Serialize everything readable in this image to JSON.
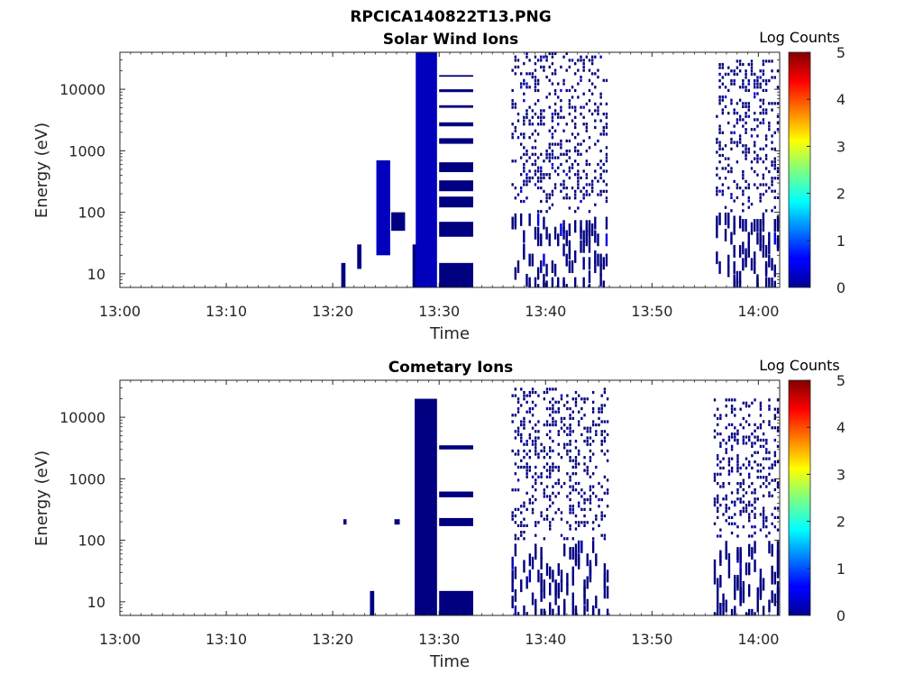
{
  "figure_title": "RPCICA140822T13.PNG",
  "colorbar_cmap": "jet",
  "colorbar_max_color": "#800000",
  "colorbar_min_color": "#00008f",
  "chart_data": [
    {
      "type": "heatmap",
      "title": "Solar Wind Ions",
      "xlabel": "Time",
      "ylabel": "Energy (eV)",
      "yscale": "log",
      "ylim": [
        6,
        40000
      ],
      "xlim": [
        "13:00",
        "14:02"
      ],
      "x_ticks": [
        "13:00",
        "13:10",
        "13:20",
        "13:30",
        "13:40",
        "13:50",
        "14:00"
      ],
      "y_ticks": [
        "10",
        "100",
        "1000",
        "10000"
      ],
      "colorbar": {
        "label": "Log Counts",
        "range": [
          0,
          5
        ],
        "ticks": [
          "0",
          "1",
          "2",
          "3",
          "4",
          "5"
        ]
      },
      "time_bins_minutes": [
        {
          "start": 20.8,
          "end": 21.2,
          "emin": 6,
          "emax": 15,
          "logc": 0
        },
        {
          "start": 22.3,
          "end": 22.7,
          "emin": 12,
          "emax": 30,
          "logc": 0
        },
        {
          "start": 24.1,
          "end": 25.4,
          "emin": 20,
          "emax": 700,
          "logc": 0.3
        },
        {
          "start": 25.5,
          "end": 26.8,
          "emin": 50,
          "emax": 100,
          "logc": 0
        },
        {
          "start": 27.5,
          "end": 28.0,
          "emin": 6,
          "emax": 30,
          "logc": 0
        },
        {
          "start": 27.8,
          "end": 29.8,
          "emin": 6,
          "emax": 40000,
          "logc": 0.3
        },
        {
          "start": 30.0,
          "end": 33.2,
          "emin": 6,
          "emax": 15,
          "logc": 0
        },
        {
          "start": 30.0,
          "end": 33.2,
          "emin": 40,
          "emax": 70,
          "logc": 0
        },
        {
          "start": 30.0,
          "end": 33.2,
          "emin": 120,
          "emax": 180,
          "logc": 0
        },
        {
          "start": 30.0,
          "end": 33.2,
          "emin": 220,
          "emax": 330,
          "logc": 0
        },
        {
          "start": 30.0,
          "end": 33.2,
          "emin": 450,
          "emax": 650,
          "logc": 0
        },
        {
          "start": 30.0,
          "end": 33.2,
          "emin": 1300,
          "emax": 1600,
          "logc": 0
        },
        {
          "start": 30.0,
          "end": 33.2,
          "emin": 2500,
          "emax": 2900,
          "logc": 0
        },
        {
          "start": 30.0,
          "end": 33.2,
          "emin": 5000,
          "emax": 5500,
          "logc": 0
        },
        {
          "start": 30.0,
          "end": 33.2,
          "emin": 9000,
          "emax": 10000,
          "logc": 0
        },
        {
          "start": 30.0,
          "end": 33.2,
          "emin": 16000,
          "emax": 17000,
          "logc": 0
        },
        {
          "start": 36.8,
          "end": 45.9,
          "emin": 6,
          "emax": 40000,
          "logc": 0.2
        },
        {
          "start": 56.0,
          "end": 62.0,
          "emin": 6,
          "emax": 30000,
          "logc": 0.15
        }
      ]
    },
    {
      "type": "heatmap",
      "title": "Cometary Ions",
      "xlabel": "Time",
      "ylabel": "Energy (eV)",
      "yscale": "log",
      "ylim": [
        6,
        40000
      ],
      "xlim": [
        "13:00",
        "14:02"
      ],
      "x_ticks": [
        "13:00",
        "13:10",
        "13:20",
        "13:30",
        "13:40",
        "13:50",
        "14:00"
      ],
      "y_ticks": [
        "10",
        "100",
        "1000",
        "10000"
      ],
      "colorbar": {
        "label": "Log Counts",
        "range": [
          0,
          5
        ],
        "ticks": [
          "0",
          "1",
          "2",
          "3",
          "4",
          "5"
        ]
      },
      "time_bins_minutes": [
        {
          "start": 21.0,
          "end": 21.3,
          "emin": 180,
          "emax": 220,
          "logc": 0
        },
        {
          "start": 23.5,
          "end": 23.9,
          "emin": 6,
          "emax": 15,
          "logc": 0
        },
        {
          "start": 25.8,
          "end": 26.3,
          "emin": 180,
          "emax": 220,
          "logc": 0
        },
        {
          "start": 27.7,
          "end": 29.8,
          "emin": 6,
          "emax": 20000,
          "logc": 0
        },
        {
          "start": 30.0,
          "end": 33.2,
          "emin": 6,
          "emax": 15,
          "logc": 0
        },
        {
          "start": 30.0,
          "end": 33.2,
          "emin": 170,
          "emax": 230,
          "logc": 0
        },
        {
          "start": 30.0,
          "end": 33.2,
          "emin": 500,
          "emax": 620,
          "logc": 0
        },
        {
          "start": 30.0,
          "end": 33.2,
          "emin": 3000,
          "emax": 3500,
          "logc": 0
        },
        {
          "start": 36.8,
          "end": 46.0,
          "emin": 6,
          "emax": 30000,
          "logc": 0
        },
        {
          "start": 55.8,
          "end": 62.0,
          "emin": 6,
          "emax": 20000,
          "logc": 0
        }
      ]
    }
  ]
}
